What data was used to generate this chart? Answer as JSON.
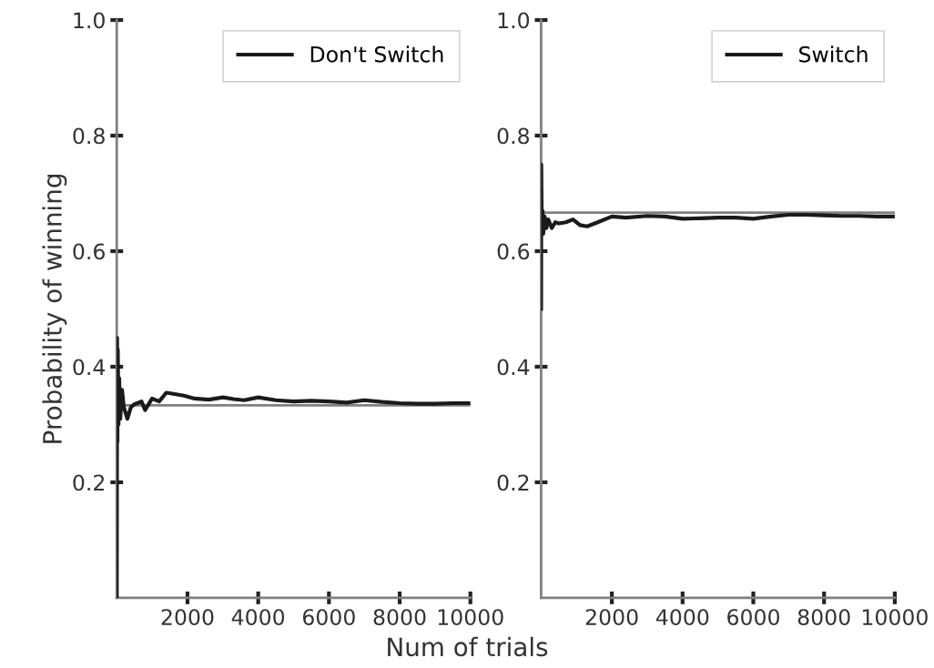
{
  "chart_data": [
    {
      "type": "line",
      "xlabel": "Num of trials",
      "ylabel": "Probability of winning",
      "xlim": [
        0,
        10000
      ],
      "xticks": [
        2000,
        4000,
        6000,
        8000,
        10000
      ],
      "ylim": [
        0,
        1.0
      ],
      "yticks": [
        0.2,
        0.4,
        0.6,
        0.8,
        {
          "value": 1,
          "label": "1.0"
        }
      ],
      "legend": "top right",
      "grid": false,
      "ref_lines": [
        {
          "axis": "y",
          "value": 0.3333,
          "color": "#808080"
        }
      ],
      "series": [
        {
          "name": "Don't Switch",
          "color": "#1a1a1a",
          "x": [
            1,
            5,
            10,
            20,
            30,
            50,
            70,
            100,
            150,
            200,
            300,
            400,
            500,
            700,
            800,
            1000,
            1200,
            1400,
            1600,
            1900,
            2200,
            2600,
            3000,
            3300,
            3600,
            4000,
            4500,
            5000,
            5500,
            6000,
            6500,
            7000,
            7500,
            8000,
            8500,
            9000,
            9500,
            10000
          ],
          "values": [
            0.0,
            0.17,
            0.45,
            0.27,
            0.43,
            0.3,
            0.38,
            0.31,
            0.36,
            0.33,
            0.31,
            0.33,
            0.335,
            0.34,
            0.325,
            0.345,
            0.34,
            0.355,
            0.353,
            0.35,
            0.345,
            0.343,
            0.347,
            0.344,
            0.342,
            0.347,
            0.342,
            0.34,
            0.341,
            0.34,
            0.338,
            0.342,
            0.339,
            0.337,
            0.336,
            0.336,
            0.337,
            0.337
          ]
        }
      ]
    },
    {
      "type": "line",
      "xlim": [
        0,
        10000
      ],
      "xticks": [
        2000,
        4000,
        6000,
        8000,
        10000
      ],
      "ylim": [
        0,
        1.0
      ],
      "yticks": [
        0.2,
        0.4,
        0.6,
        0.8,
        {
          "value": 1,
          "label": "1.0"
        }
      ],
      "legend": "top right",
      "grid": false,
      "ref_lines": [
        {
          "axis": "y",
          "value": 0.6667,
          "color": "#808080"
        }
      ],
      "series": [
        {
          "name": "Switch",
          "color": "#1a1a1a",
          "x": [
            1,
            5,
            10,
            20,
            40,
            60,
            100,
            150,
            200,
            300,
            400,
            500,
            700,
            900,
            1100,
            1300,
            1600,
            2000,
            2400,
            3000,
            3500,
            4000,
            4500,
            5000,
            5500,
            6000,
            6500,
            7000,
            7500,
            8000,
            8500,
            9000,
            9500,
            10000
          ],
          "values": [
            0.5,
            0.75,
            0.7,
            0.63,
            0.67,
            0.63,
            0.66,
            0.64,
            0.655,
            0.64,
            0.65,
            0.648,
            0.65,
            0.655,
            0.645,
            0.643,
            0.65,
            0.66,
            0.658,
            0.661,
            0.66,
            0.656,
            0.657,
            0.658,
            0.658,
            0.656,
            0.66,
            0.663,
            0.663,
            0.662,
            0.661,
            0.661,
            0.66,
            0.66
          ]
        }
      ]
    }
  ]
}
